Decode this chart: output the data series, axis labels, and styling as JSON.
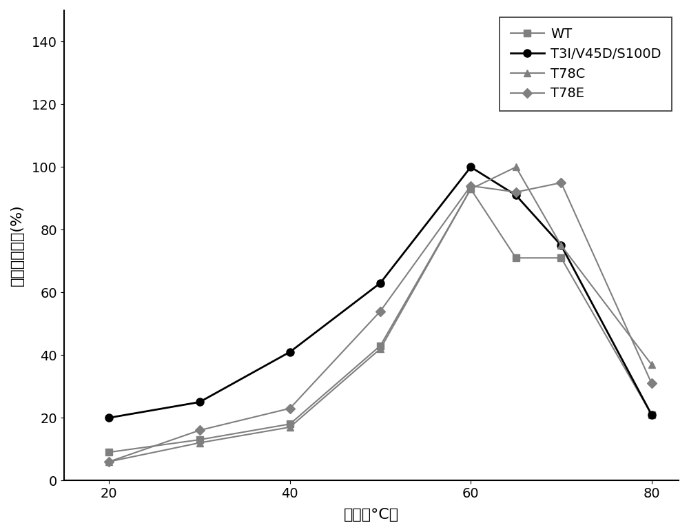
{
  "x": [
    20,
    30,
    40,
    50,
    60,
    65,
    70,
    80
  ],
  "WT": [
    9,
    13,
    18,
    43,
    93,
    71,
    71,
    21
  ],
  "T3I_V45D_S100D": [
    20,
    25,
    41,
    63,
    100,
    91,
    75,
    21
  ],
  "T78C": [
    6,
    12,
    17,
    42,
    93,
    100,
    75,
    37
  ],
  "T78E": [
    6,
    16,
    23,
    54,
    94,
    92,
    95,
    31
  ],
  "xlabel": "温度（°C）",
  "ylabel": "角蛋白酶活力(%)",
  "ylim": [
    0,
    150
  ],
  "yticks": [
    0,
    20,
    40,
    60,
    80,
    100,
    120,
    140
  ],
  "xticks": [
    20,
    40,
    60,
    80
  ],
  "legend_labels": [
    "WT",
    "T3I/V45D/S100D",
    "T78C",
    "T78E"
  ],
  "colors": [
    "#7f7f7f",
    "#000000",
    "#7f7f7f",
    "#7f7f7f"
  ],
  "line_styles": [
    "-",
    "-",
    "-",
    "-"
  ],
  "markers": [
    "s",
    "o",
    "^",
    "D"
  ],
  "marker_sizes": [
    7,
    8,
    7,
    7
  ],
  "linewidths": [
    1.5,
    2.0,
    1.5,
    1.5
  ]
}
